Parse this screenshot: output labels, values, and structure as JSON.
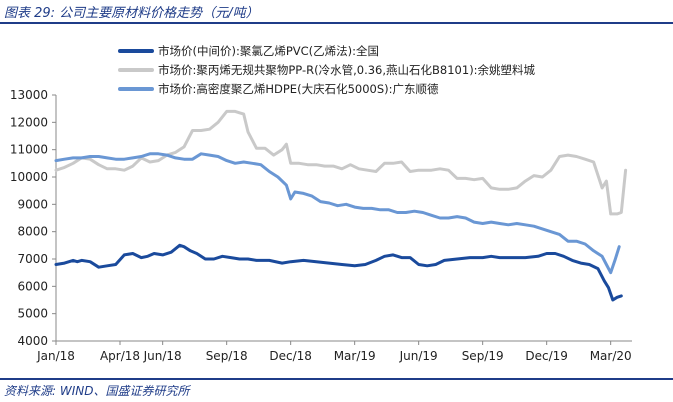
{
  "header": {
    "figure_title": "图表 29:  公司主要原材料价格走势（元/吨）"
  },
  "footer": {
    "source": "资料来源:  WIND、国盛证券研究所"
  },
  "chart_data": {
    "type": "line",
    "title": "公司主要原材料价格走势（元/吨）",
    "xlabel": "",
    "ylabel": "",
    "ylim": [
      4000,
      13000
    ],
    "yticks": [
      4000,
      5000,
      6000,
      7000,
      8000,
      9000,
      10000,
      11000,
      12000,
      13000
    ],
    "xlim": [
      0,
      27.0
    ],
    "xticks": [
      {
        "label": "Jan/18",
        "x": 0
      },
      {
        "label": "Apr/18",
        "x": 3
      },
      {
        "label": "Jun/18",
        "x": 5
      },
      {
        "label": "Sep/18",
        "x": 8
      },
      {
        "label": "Dec/18",
        "x": 11
      },
      {
        "label": "Mar/19",
        "x": 14
      },
      {
        "label": "Jun/19",
        "x": 17
      },
      {
        "label": "Sep/19",
        "x": 20
      },
      {
        "label": "Dec/19",
        "x": 23
      },
      {
        "label": "Mar/20",
        "x": 26
      }
    ],
    "legend_position": "top",
    "grid": false,
    "series": [
      {
        "name": "市场价(中间价):聚氯乙烯PVC(乙烯法):全国",
        "color": "#1a4a9c",
        "dash": "solid",
        "x": [
          0,
          0.4,
          0.8,
          1.0,
          1.2,
          1.6,
          2.0,
          2.4,
          2.8,
          3.2,
          3.6,
          4.0,
          4.3,
          4.6,
          5.0,
          5.4,
          5.8,
          6.0,
          6.3,
          6.6,
          7.0,
          7.4,
          7.8,
          8.2,
          8.6,
          9.0,
          9.4,
          10.0,
          10.6,
          11.0,
          11.6,
          12.2,
          12.8,
          13.4,
          14.0,
          14.5,
          15.0,
          15.4,
          15.8,
          16.2,
          16.6,
          17.0,
          17.4,
          17.8,
          18.2,
          18.8,
          19.4,
          20.0,
          20.4,
          20.8,
          21.4,
          22.0,
          22.6,
          23.0,
          23.4,
          23.8,
          24.2,
          24.6,
          25.0,
          25.4,
          25.7,
          25.9,
          26.1,
          26.3,
          26.5
        ],
        "values": [
          6800,
          6850,
          6950,
          6900,
          6950,
          6900,
          6700,
          6750,
          6800,
          7150,
          7200,
          7050,
          7100,
          7200,
          7150,
          7250,
          7500,
          7450,
          7300,
          7200,
          7000,
          7000,
          7100,
          7050,
          7000,
          7000,
          6950,
          6950,
          6850,
          6900,
          6950,
          6900,
          6850,
          6800,
          6750,
          6800,
          6950,
          7100,
          7150,
          7050,
          7050,
          6800,
          6750,
          6800,
          6950,
          7000,
          7050,
          7050,
          7100,
          7050,
          7050,
          7050,
          7100,
          7200,
          7200,
          7100,
          6950,
          6850,
          6800,
          6650,
          6200,
          5950,
          5500,
          5600,
          5650
        ]
      },
      {
        "name": "市场价:聚丙烯无规共聚物PP-R(冷水管,0.36,燕山石化B8101):余姚塑料城",
        "color": "#c9c9c9",
        "dash": "solid",
        "x": [
          0,
          0.4,
          0.8,
          1.2,
          1.6,
          2.0,
          2.4,
          2.8,
          3.2,
          3.6,
          4.0,
          4.4,
          4.8,
          5.2,
          5.6,
          6.0,
          6.4,
          6.8,
          7.2,
          7.6,
          8.0,
          8.4,
          8.6,
          8.8,
          9.0,
          9.4,
          9.8,
          10.2,
          10.6,
          10.8,
          11.0,
          11.4,
          11.8,
          12.2,
          12.6,
          13.0,
          13.4,
          13.8,
          14.2,
          14.6,
          15.0,
          15.4,
          15.8,
          16.2,
          16.6,
          17.0,
          17.2,
          17.6,
          18.0,
          18.4,
          18.8,
          19.2,
          19.6,
          20.0,
          20.4,
          20.8,
          21.2,
          21.6,
          22.0,
          22.4,
          22.8,
          23.2,
          23.6,
          24.0,
          24.4,
          24.8,
          25.2,
          25.6,
          25.8,
          26.0,
          26.3,
          26.5,
          26.7
        ],
        "values": [
          10250,
          10350,
          10500,
          10700,
          10650,
          10450,
          10300,
          10300,
          10250,
          10400,
          10700,
          10550,
          10600,
          10800,
          10900,
          11100,
          11700,
          11700,
          11750,
          12000,
          12400,
          12400,
          12350,
          12300,
          11650,
          11050,
          11050,
          10800,
          11000,
          11200,
          10500,
          10500,
          10450,
          10450,
          10400,
          10400,
          10300,
          10450,
          10300,
          10250,
          10200,
          10500,
          10500,
          10550,
          10200,
          10250,
          10250,
          10250,
          10300,
          10250,
          9950,
          9950,
          9900,
          9950,
          9600,
          9550,
          9550,
          9600,
          9850,
          10050,
          10000,
          10250,
          10750,
          10800,
          10750,
          10650,
          10550,
          9600,
          9850,
          8650,
          8650,
          8700,
          10250
        ]
      },
      {
        "name": "市场价:高密度聚乙烯HDPE(大庆石化5000S):广东顺德",
        "color": "#6a97d4",
        "dash": "solid",
        "x": [
          0,
          0.4,
          0.8,
          1.2,
          1.6,
          2.0,
          2.4,
          2.8,
          3.2,
          3.6,
          4.0,
          4.4,
          4.8,
          5.2,
          5.6,
          6.0,
          6.4,
          6.8,
          7.2,
          7.6,
          8.0,
          8.4,
          8.8,
          9.2,
          9.6,
          10.0,
          10.4,
          10.8,
          11.0,
          11.2,
          11.6,
          12.0,
          12.4,
          12.8,
          13.2,
          13.6,
          14.0,
          14.4,
          14.8,
          15.2,
          15.6,
          16.0,
          16.4,
          16.8,
          17.2,
          17.6,
          18.0,
          18.4,
          18.8,
          19.2,
          19.6,
          20.0,
          20.4,
          20.8,
          21.2,
          21.6,
          22.0,
          22.4,
          22.8,
          23.2,
          23.6,
          24.0,
          24.4,
          24.8,
          25.2,
          25.6,
          25.8,
          26.0,
          26.2,
          26.4
        ],
        "values": [
          10600,
          10650,
          10700,
          10700,
          10750,
          10750,
          10700,
          10650,
          10650,
          10700,
          10750,
          10850,
          10850,
          10800,
          10700,
          10650,
          10650,
          10850,
          10800,
          10750,
          10600,
          10500,
          10550,
          10500,
          10450,
          10200,
          10000,
          9700,
          9200,
          9450,
          9400,
          9300,
          9100,
          9050,
          8950,
          9000,
          8900,
          8850,
          8850,
          8800,
          8800,
          8700,
          8700,
          8750,
          8700,
          8600,
          8500,
          8500,
          8550,
          8500,
          8350,
          8300,
          8350,
          8300,
          8250,
          8300,
          8250,
          8200,
          8100,
          8000,
          7900,
          7650,
          7650,
          7550,
          7300,
          7100,
          6800,
          6500,
          6950,
          7450
        ]
      }
    ]
  }
}
